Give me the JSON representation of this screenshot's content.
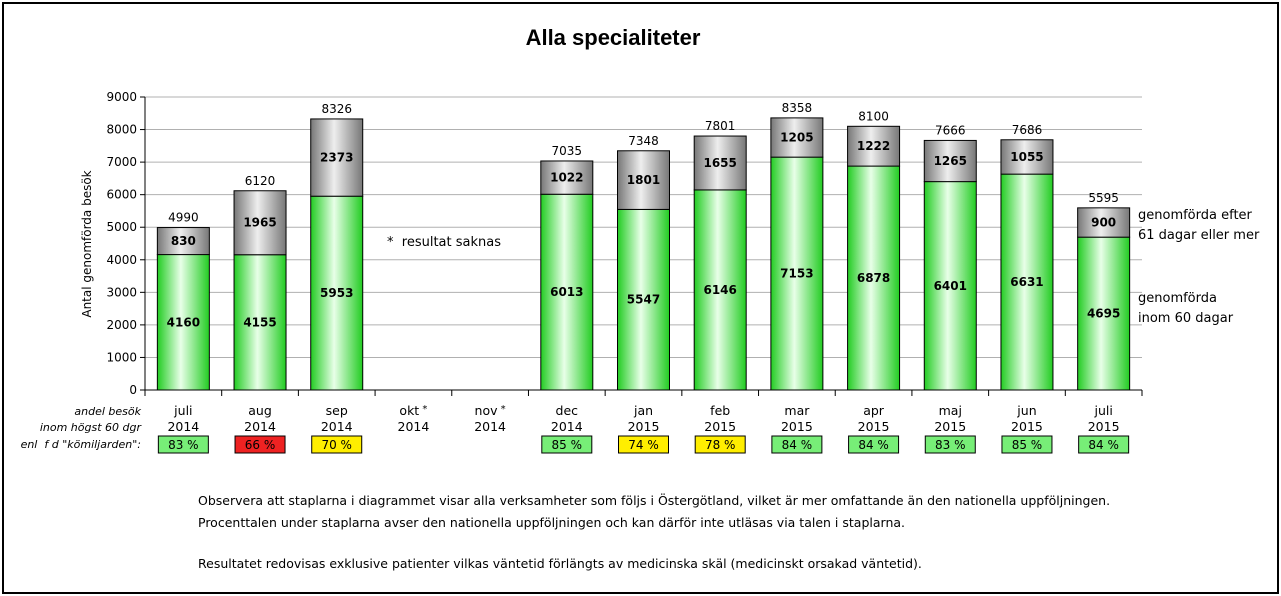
{
  "chart_data": {
    "type": "bar",
    "stacked": true,
    "title": "Alla specialiteter",
    "ylabel": "Antal genomförda besök",
    "ylim": [
      0,
      9000
    ],
    "yticks": [
      0,
      1000,
      2000,
      3000,
      4000,
      5000,
      6000,
      7000,
      8000,
      9000
    ],
    "grid": true,
    "months": [
      {
        "month": "juli",
        "year": "2014",
        "star": ""
      },
      {
        "month": "aug",
        "year": "2014",
        "star": ""
      },
      {
        "month": "sep",
        "year": "2014",
        "star": ""
      },
      {
        "month": "okt",
        "year": "2014",
        "star": "*"
      },
      {
        "month": "nov",
        "year": "2014",
        "star": "*"
      },
      {
        "month": "dec",
        "year": "2014",
        "star": ""
      },
      {
        "month": "jan",
        "year": "2015",
        "star": ""
      },
      {
        "month": "feb",
        "year": "2015",
        "star": ""
      },
      {
        "month": "mar",
        "year": "2015",
        "star": ""
      },
      {
        "month": "apr",
        "year": "2015",
        "star": ""
      },
      {
        "month": "maj",
        "year": "2015",
        "star": ""
      },
      {
        "month": "jun",
        "year": "2015",
        "star": ""
      },
      {
        "month": "juli",
        "year": "2015",
        "star": ""
      }
    ],
    "series": [
      {
        "values": [
          4160,
          4155,
          5953,
          null,
          null,
          6013,
          5547,
          6146,
          7153,
          6878,
          6401,
          6631,
          4695
        ],
        "color": "#33dd33"
      },
      {
        "values": [
          830,
          1965,
          2373,
          null,
          null,
          1022,
          1801,
          1655,
          1205,
          1222,
          1265,
          1055,
          900
        ],
        "color": "#888888"
      }
    ],
    "totals": [
      "4990",
      "6120",
      "8326",
      "",
      "",
      "7035",
      "7348",
      "7801",
      "8358",
      "8100",
      "7666",
      "7686",
      "5595"
    ],
    "legend": {
      "upper_line1": "genomförda efter",
      "upper_line2": "61 dagar eller mer",
      "lower_line1": "genomförda",
      "lower_line2": "inom 60 dagar"
    },
    "annotation": "*  resultat saknas",
    "row_label": [
      "andel besök",
      "inom högst 60 dgr",
      "enl  f d \"kömiljarden\":"
    ],
    "percentages": [
      {
        "text": "83 %",
        "color": "#77ee77"
      },
      {
        "text": "66 %",
        "color": "#ee2222"
      },
      {
        "text": "70 %",
        "color": "#ffee00"
      },
      {
        "text": "",
        "color": ""
      },
      {
        "text": "",
        "color": ""
      },
      {
        "text": "85 %",
        "color": "#77ee77"
      },
      {
        "text": "74 %",
        "color": "#ffee00"
      },
      {
        "text": "78 %",
        "color": "#ffee00"
      },
      {
        "text": "84 %",
        "color": "#77ee77"
      },
      {
        "text": "84 %",
        "color": "#77ee77"
      },
      {
        "text": "83 %",
        "color": "#77ee77"
      },
      {
        "text": "85 %",
        "color": "#77ee77"
      },
      {
        "text": "84 %",
        "color": "#77ee77"
      }
    ]
  },
  "notes": {
    "line1": "Observera att staplarna i diagrammet visar alla verksamheter som följs i Östergötland, vilket är mer omfattande än den nationella uppföljningen.",
    "line2": "Procenttalen under staplarna avser den nationella uppföljningen och kan därför inte utläsas via talen i staplarna.",
    "line3": "Resultatet redovisas exklusive patienter vilkas väntetid förlängts av medicinska skäl (medicinskt  orsakad väntetid)."
  }
}
